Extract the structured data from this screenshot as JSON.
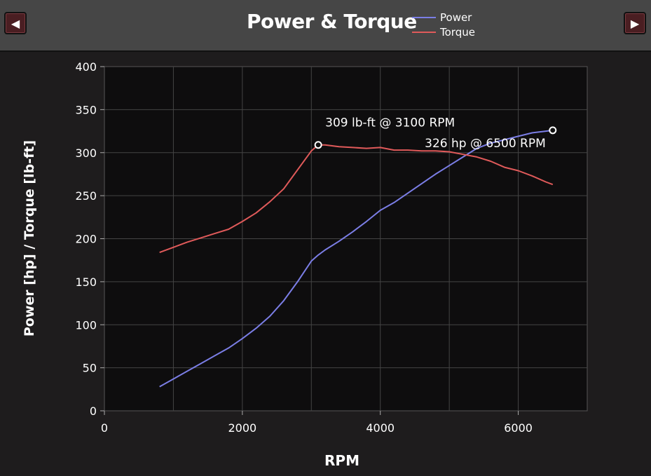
{
  "header": {
    "title": "Power & Torque",
    "prev_symbol": "◀",
    "next_symbol": "▶"
  },
  "chart_data": {
    "type": "line",
    "title": "Power & Torque",
    "xlabel": "RPM",
    "ylabel": "Power [hp] / Torque [lb-ft]",
    "xlim": [
      0,
      7000
    ],
    "ylim": [
      0,
      400
    ],
    "xticks": [
      0,
      2000,
      4000,
      6000
    ],
    "yticks": [
      0,
      50,
      100,
      150,
      200,
      250,
      300,
      350,
      400
    ],
    "grid": true,
    "legend_position": "top",
    "series": [
      {
        "name": "Power",
        "color": "#7b7ee6",
        "x": [
          800,
          1000,
          1200,
          1400,
          1600,
          1800,
          2000,
          2200,
          2400,
          2600,
          2800,
          3000,
          3100,
          3200,
          3400,
          3600,
          3800,
          4000,
          4200,
          4400,
          4600,
          4800,
          5000,
          5200,
          5400,
          5600,
          5800,
          6000,
          6200,
          6400,
          6500
        ],
        "values": [
          28,
          37,
          46,
          55,
          64,
          73,
          84,
          96,
          110,
          128,
          150,
          174,
          181,
          187,
          197,
          208,
          220,
          233,
          242,
          253,
          264,
          275,
          285,
          295,
          305,
          311,
          315,
          319,
          323,
          325,
          326
        ]
      },
      {
        "name": "Torque",
        "color": "#e05a5a",
        "x": [
          800,
          1000,
          1200,
          1400,
          1600,
          1800,
          2000,
          2200,
          2400,
          2600,
          2800,
          3000,
          3100,
          3200,
          3400,
          3600,
          3800,
          4000,
          4200,
          4400,
          4600,
          4800,
          5000,
          5200,
          5400,
          5600,
          5800,
          6000,
          6200,
          6400,
          6500
        ],
        "values": [
          184,
          190,
          196,
          201,
          206,
          211,
          220,
          230,
          243,
          258,
          280,
          302,
          309,
          309,
          307,
          306,
          305,
          306,
          303,
          303,
          302,
          302,
          301,
          298,
          295,
          290,
          283,
          279,
          273,
          266,
          263
        ]
      }
    ],
    "annotations": [
      {
        "text": "309 lb-ft @ 3100 RPM",
        "x": 3100,
        "y": 309,
        "series": "Torque"
      },
      {
        "text": "326 hp @ 6500 RPM",
        "x": 6500,
        "y": 326,
        "series": "Power"
      }
    ]
  }
}
